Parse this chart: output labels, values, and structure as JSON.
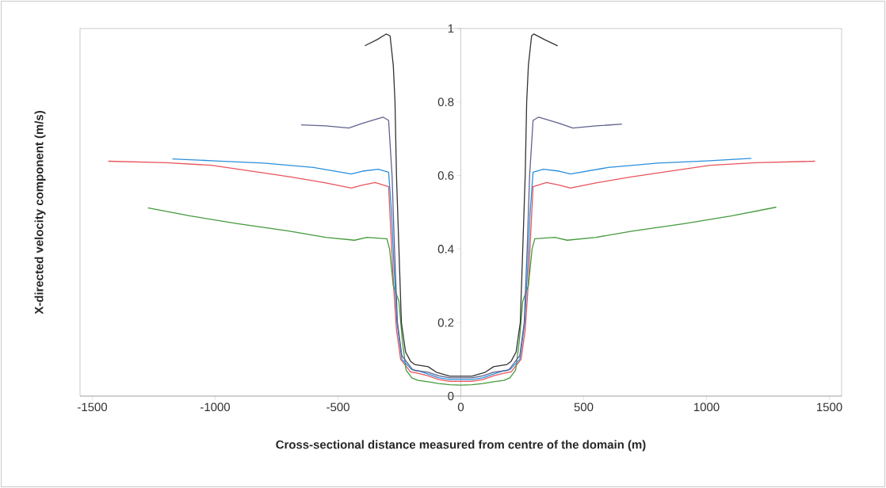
{
  "chart_data": {
    "type": "line",
    "xlabel": "Cross-sectional distance measured from centre of the domain (m)",
    "ylabel": "X-directed velocity component (m/s)",
    "xlim": [
      -1550,
      1550
    ],
    "ylim": [
      0,
      1
    ],
    "xticks": [
      -1500,
      -1000,
      -500,
      0,
      500,
      1000,
      1500
    ],
    "yticks": [
      0,
      0.2,
      0.4,
      0.6,
      0.8,
      1
    ],
    "grid": false,
    "marker": "none",
    "line_style": "solid",
    "series": [
      {
        "color": "#e8545c",
        "x": [
          -1435,
          -1200,
          -1015,
          -850,
          -692,
          -550,
          -446,
          -400,
          -349,
          -294,
          -285,
          -274,
          -262,
          -245,
          -205,
          -175,
          -133,
          -90,
          -45,
          0,
          45,
          90,
          133,
          175,
          205,
          245,
          262,
          274,
          285,
          294,
          349,
          400,
          446,
          550,
          692,
          850,
          1015,
          1200,
          1442
        ],
        "values": [
          0.639,
          0.635,
          0.628,
          0.612,
          0.596,
          0.58,
          0.566,
          0.574,
          0.581,
          0.57,
          0.45,
          0.3,
          0.18,
          0.1,
          0.066,
          0.062,
          0.055,
          0.045,
          0.04,
          0.04,
          0.04,
          0.045,
          0.055,
          0.062,
          0.066,
          0.1,
          0.18,
          0.3,
          0.45,
          0.57,
          0.581,
          0.574,
          0.566,
          0.58,
          0.596,
          0.612,
          0.628,
          0.635,
          0.639
        ]
      },
      {
        "color": "#449a3c",
        "x": [
          -1274,
          -1100,
          -908,
          -700,
          -550,
          -433,
          -382,
          -301,
          -290,
          -275,
          -252,
          -238,
          -223,
          -200,
          -175,
          -133,
          -90,
          -45,
          0,
          45,
          90,
          133,
          175,
          200,
          223,
          238,
          252,
          275,
          290,
          301,
          382,
          433,
          550,
          700,
          908,
          1100,
          1284
        ],
        "values": [
          0.512,
          0.49,
          0.469,
          0.449,
          0.432,
          0.424,
          0.432,
          0.428,
          0.4,
          0.3,
          0.258,
          0.15,
          0.071,
          0.05,
          0.043,
          0.039,
          0.034,
          0.031,
          0.03,
          0.031,
          0.034,
          0.039,
          0.043,
          0.05,
          0.071,
          0.15,
          0.258,
          0.3,
          0.4,
          0.428,
          0.432,
          0.424,
          0.432,
          0.449,
          0.469,
          0.49,
          0.514
        ]
      },
      {
        "color": "#2a8fdc",
        "x": [
          -1174,
          -1000,
          -802,
          -600,
          -446,
          -400,
          -336,
          -294,
          -282,
          -272,
          -260,
          -240,
          -200,
          -175,
          -133,
          -90,
          -45,
          0,
          45,
          90,
          133,
          175,
          200,
          240,
          260,
          272,
          282,
          294,
          336,
          400,
          446,
          600,
          802,
          1000,
          1183
        ],
        "values": [
          0.645,
          0.64,
          0.634,
          0.622,
          0.604,
          0.612,
          0.617,
          0.609,
          0.5,
          0.35,
          0.2,
          0.1,
          0.072,
          0.069,
          0.06,
          0.05,
          0.045,
          0.045,
          0.045,
          0.05,
          0.06,
          0.069,
          0.072,
          0.1,
          0.2,
          0.35,
          0.5,
          0.609,
          0.617,
          0.612,
          0.604,
          0.622,
          0.634,
          0.64,
          0.647
        ]
      },
      {
        "color": "#60628f",
        "x": [
          -650,
          -550,
          -456,
          -400,
          -317,
          -294,
          -280,
          -270,
          -258,
          -240,
          -200,
          -190,
          -133,
          -90,
          -45,
          0,
          45,
          90,
          133,
          190,
          200,
          240,
          258,
          270,
          280,
          294,
          317,
          400,
          456,
          550,
          656
        ],
        "values": [
          0.738,
          0.735,
          0.729,
          0.742,
          0.759,
          0.75,
          0.6,
          0.4,
          0.2,
          0.11,
          0.075,
          0.07,
          0.065,
          0.055,
          0.05,
          0.05,
          0.05,
          0.055,
          0.065,
          0.07,
          0.075,
          0.11,
          0.2,
          0.4,
          0.6,
          0.75,
          0.759,
          0.742,
          0.729,
          0.735,
          0.74
        ]
      },
      {
        "color": "#333333",
        "x": [
          -391,
          -340,
          -304,
          -288,
          -275,
          -268,
          -262,
          -252,
          -242,
          -225,
          -205,
          -188,
          -133,
          -100,
          -45,
          0,
          45,
          100,
          133,
          188,
          205,
          225,
          242,
          252,
          262,
          268,
          275,
          288,
          297,
          340,
          394
        ],
        "values": [
          0.953,
          0.97,
          0.985,
          0.98,
          0.9,
          0.8,
          0.6,
          0.4,
          0.2,
          0.12,
          0.095,
          0.086,
          0.08,
          0.065,
          0.054,
          0.054,
          0.054,
          0.065,
          0.08,
          0.086,
          0.095,
          0.12,
          0.2,
          0.4,
          0.6,
          0.8,
          0.9,
          0.98,
          0.985,
          0.97,
          0.953
        ]
      }
    ]
  }
}
